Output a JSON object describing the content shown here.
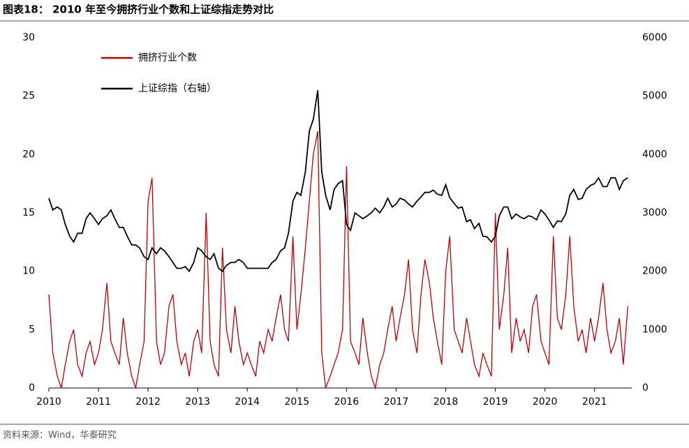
{
  "chart_data": {
    "type": "line",
    "title": "图表18： 2010 年至今拥挤行业个数和上证综指走势对比",
    "source": "资料来源：Wind，华泰研究",
    "x": [
      2010,
      2010.08,
      2010.17,
      2010.25,
      2010.33,
      2010.42,
      2010.5,
      2010.58,
      2010.67,
      2010.75,
      2010.83,
      2010.92,
      2011,
      2011.08,
      2011.17,
      2011.25,
      2011.33,
      2011.42,
      2011.5,
      2011.58,
      2011.67,
      2011.75,
      2011.83,
      2011.92,
      2012,
      2012.08,
      2012.17,
      2012.25,
      2012.33,
      2012.42,
      2012.5,
      2012.58,
      2012.67,
      2012.75,
      2012.83,
      2012.92,
      2013,
      2013.08,
      2013.17,
      2013.25,
      2013.33,
      2013.42,
      2013.5,
      2013.58,
      2013.67,
      2013.75,
      2013.83,
      2013.92,
      2014,
      2014.08,
      2014.17,
      2014.25,
      2014.33,
      2014.42,
      2014.5,
      2014.58,
      2014.67,
      2014.75,
      2014.83,
      2014.92,
      2015,
      2015.08,
      2015.17,
      2015.25,
      2015.33,
      2015.42,
      2015.5,
      2015.58,
      2015.67,
      2015.75,
      2015.83,
      2015.92,
      2016,
      2016.08,
      2016.17,
      2016.25,
      2016.33,
      2016.42,
      2016.5,
      2016.58,
      2016.67,
      2016.75,
      2016.83,
      2016.92,
      2017,
      2017.08,
      2017.17,
      2017.25,
      2017.33,
      2017.42,
      2017.5,
      2017.58,
      2017.67,
      2017.75,
      2017.83,
      2017.92,
      2018,
      2018.08,
      2018.17,
      2018.25,
      2018.33,
      2018.42,
      2018.5,
      2018.58,
      2018.67,
      2018.75,
      2018.83,
      2018.92,
      2019,
      2019.08,
      2019.17,
      2019.25,
      2019.33,
      2019.42,
      2019.5,
      2019.58,
      2019.67,
      2019.75,
      2019.83,
      2019.92,
      2020,
      2020.08,
      2020.17,
      2020.25,
      2020.33,
      2020.42,
      2020.5,
      2020.58,
      2020.67,
      2020.75,
      2020.83,
      2020.92,
      2021,
      2021.08,
      2021.17,
      2021.25,
      2021.33,
      2021.42,
      2021.5,
      2021.58,
      2021.67
    ],
    "series": [
      {
        "name": "拥挤行业个数",
        "color": "#c00000",
        "values": [
          8,
          3,
          1,
          0,
          2,
          4,
          5,
          2,
          1,
          3,
          4,
          2,
          3,
          5,
          9,
          4,
          3,
          2,
          6,
          3,
          1,
          0,
          2,
          4,
          16,
          18,
          4,
          2,
          3,
          7,
          8,
          4,
          2,
          3,
          1,
          4,
          5,
          3,
          15,
          4,
          2,
          1,
          12,
          5,
          3,
          7,
          4,
          2,
          3,
          2,
          1,
          4,
          3,
          5,
          4,
          6,
          8,
          5,
          4,
          13,
          5,
          8,
          12,
          16,
          20,
          22,
          3,
          0,
          1,
          2,
          3,
          5,
          19,
          4,
          3,
          2,
          6,
          3,
          1,
          0,
          2,
          3,
          5,
          7,
          4,
          6,
          8,
          11,
          5,
          3,
          8,
          11,
          9,
          6,
          4,
          2,
          10,
          13,
          5,
          4,
          3,
          6,
          4,
          2,
          1,
          3,
          2,
          1,
          15,
          5,
          8,
          12,
          3,
          6,
          4,
          5,
          3,
          7,
          8,
          4,
          3,
          2,
          13,
          6,
          5,
          8,
          13,
          7,
          4,
          5,
          3,
          6,
          4,
          6,
          9,
          5,
          3,
          4,
          6,
          2,
          7
        ]
      },
      {
        "name": "上证综指（右轴）",
        "color": "#000000",
        "axis": "y2",
        "values": [
          3250,
          3050,
          3100,
          3050,
          2800,
          2600,
          2500,
          2650,
          2650,
          2900,
          3000,
          2900,
          2800,
          2900,
          2950,
          3050,
          2900,
          2750,
          2750,
          2600,
          2450,
          2450,
          2400,
          2250,
          2200,
          2400,
          2300,
          2400,
          2350,
          2250,
          2150,
          2050,
          2050,
          2080,
          2000,
          2150,
          2400,
          2350,
          2250,
          2200,
          2300,
          2050,
          2000,
          2100,
          2150,
          2150,
          2200,
          2150,
          2050,
          2050,
          2050,
          2050,
          2050,
          2050,
          2150,
          2200,
          2350,
          2400,
          2650,
          3200,
          3350,
          3300,
          3700,
          4400,
          4600,
          5100,
          3700,
          3300,
          3050,
          3400,
          3500,
          3550,
          2800,
          2700,
          3000,
          2950,
          2900,
          2950,
          3000,
          3080,
          3000,
          3100,
          3250,
          3100,
          3150,
          3250,
          3220,
          3150,
          3100,
          3200,
          3270,
          3350,
          3350,
          3390,
          3320,
          3300,
          3480,
          3260,
          3160,
          3080,
          3100,
          2850,
          2880,
          2730,
          2820,
          2600,
          2590,
          2500,
          2600,
          2950,
          3100,
          3100,
          2900,
          2980,
          2930,
          2900,
          2950,
          2930,
          2880,
          3050,
          2980,
          2880,
          2750,
          2860,
          2850,
          2980,
          3300,
          3400,
          3230,
          3250,
          3400,
          3470,
          3500,
          3600,
          3450,
          3450,
          3600,
          3600,
          3400,
          3550,
          3600
        ]
      }
    ],
    "xlim": [
      2010,
      2021.75
    ],
    "xticks": [
      2010,
      2011,
      2012,
      2013,
      2014,
      2015,
      2016,
      2017,
      2018,
      2019,
      2020,
      2021
    ],
    "ylim": [
      0,
      30
    ],
    "yticks": [
      0,
      5,
      10,
      15,
      20,
      25,
      30
    ],
    "y2lim": [
      0,
      6000
    ],
    "y2ticks": [
      0,
      1000,
      2000,
      3000,
      4000,
      5000,
      6000
    ]
  }
}
